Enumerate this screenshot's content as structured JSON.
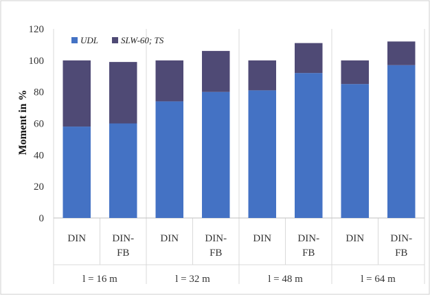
{
  "chart_data": {
    "type": "bar",
    "stacked": true,
    "title": "",
    "ylabel": "Moment in %",
    "xlabel": "",
    "ylim": [
      0,
      120
    ],
    "yticks": [
      0,
      20,
      40,
      60,
      80,
      100,
      120
    ],
    "grid": false,
    "legend_position": "top-left",
    "categories": [
      "DIN",
      "DIN-FB",
      "DIN",
      "DIN-FB",
      "DIN",
      "DIN-FB",
      "DIN",
      "DIN-FB"
    ],
    "category_labels": [
      [
        "DIN"
      ],
      [
        "DIN-",
        "FB"
      ],
      [
        "DIN"
      ],
      [
        "DIN-",
        "FB"
      ],
      [
        "DIN"
      ],
      [
        "DIN-",
        "FB"
      ],
      [
        "DIN"
      ],
      [
        "DIN-",
        "FB"
      ]
    ],
    "groups": [
      "l = 16 m",
      "l = 32 m",
      "l = 48 m",
      "l = 64 m"
    ],
    "series": [
      {
        "name": "UDL",
        "color": "#4472c4",
        "values": [
          58,
          60,
          74,
          80,
          81,
          92,
          85,
          97
        ]
      },
      {
        "name": "SLW-60; TS",
        "color": "#4f4a75",
        "values": [
          42,
          39,
          26,
          26,
          19,
          19,
          15,
          15
        ]
      }
    ]
  }
}
